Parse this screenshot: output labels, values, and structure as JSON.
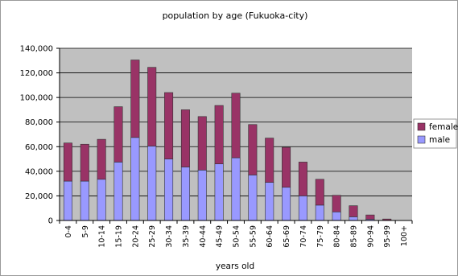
{
  "chart_data": {
    "type": "bar",
    "stacked": true,
    "title": "population by age (Fukuoka-city)",
    "xlabel": "years old",
    "ylabel": "",
    "ylim": [
      0,
      140000
    ],
    "yticks": [
      0,
      20000,
      40000,
      60000,
      80000,
      100000,
      120000,
      140000
    ],
    "ytick_labels": [
      "0",
      "20,000",
      "40,000",
      "60,000",
      "80,000",
      "100,000",
      "120,000",
      "140,000"
    ],
    "grid": true,
    "legend_position": "right",
    "categories": [
      "0-4",
      "5-9",
      "10-14",
      "15-19",
      "20-24",
      "25-29",
      "30-34",
      "35-39",
      "40-44",
      "45-49",
      "50-54",
      "55-59",
      "60-64",
      "65-69",
      "70-74",
      "75-79",
      "80-84",
      "85-89",
      "90-94",
      "95-99",
      "100+"
    ],
    "series": [
      {
        "name": "male",
        "color": "#9999ff",
        "values": [
          32000,
          32000,
          33500,
          47500,
          67500,
          60500,
          50000,
          43500,
          41000,
          46000,
          51000,
          37000,
          31000,
          27000,
          20000,
          12500,
          7000,
          3000,
          1000,
          200,
          0
        ]
      },
      {
        "name": "female",
        "color": "#993366",
        "values": [
          31000,
          30000,
          32500,
          45000,
          63000,
          64000,
          54000,
          46500,
          43500,
          47500,
          52500,
          41000,
          36000,
          32500,
          27500,
          21000,
          13500,
          9000,
          3500,
          1000,
          0
        ]
      }
    ]
  },
  "style": {
    "plot_bg": "#c0c0c0",
    "grid_color": "#000000",
    "bar_stroke": "#333333"
  }
}
